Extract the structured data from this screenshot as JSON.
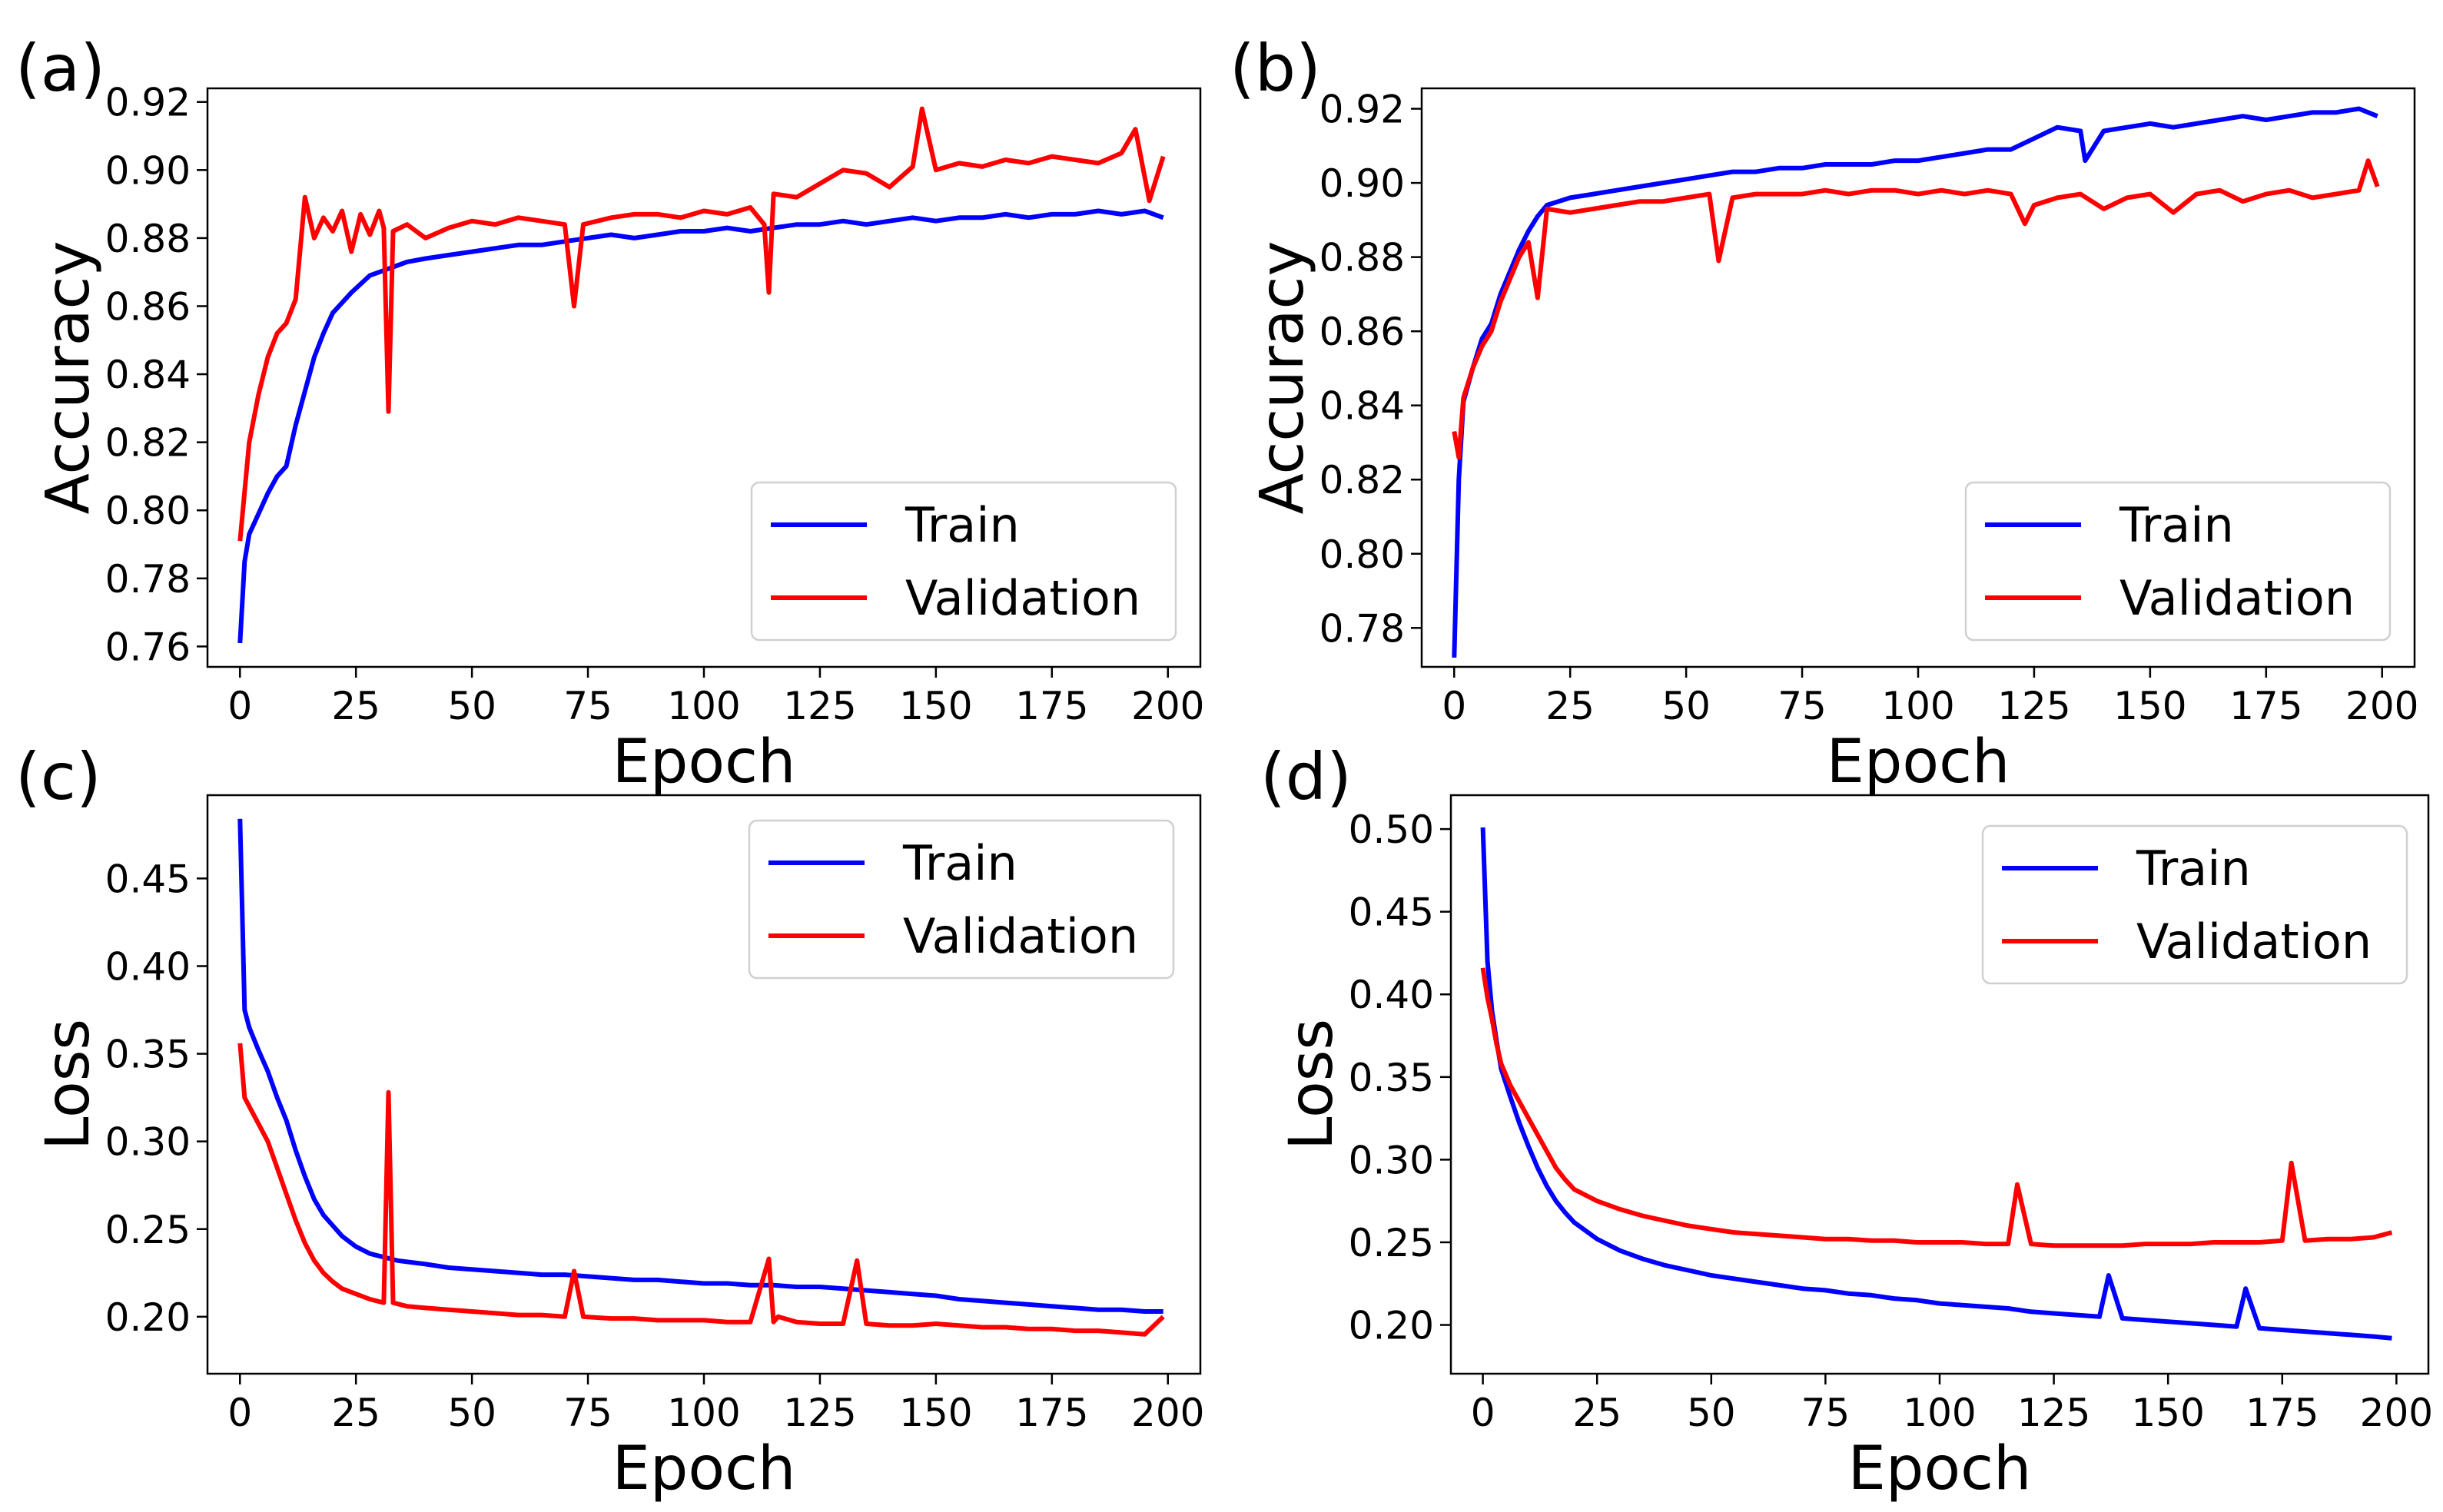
{
  "figure": {
    "panels": [
      "(a)",
      "(b)",
      "(c)",
      "(d)"
    ]
  },
  "colors": {
    "train": "#0000ff",
    "validation": "#ff0000"
  },
  "chart_data": [
    {
      "panel": "(a)",
      "type": "line",
      "title": "",
      "xlabel": "Epoch",
      "ylabel": "Accuracy",
      "xlim": [
        -7,
        207
      ],
      "ylim": [
        0.754,
        0.924
      ],
      "xticks": [
        0,
        25,
        50,
        75,
        100,
        125,
        150,
        175,
        200
      ],
      "yticks": [
        0.76,
        0.78,
        0.8,
        0.82,
        0.84,
        0.86,
        0.88,
        0.9,
        0.92
      ],
      "ytick_labels": [
        "0.76",
        "0.78",
        "0.80",
        "0.82",
        "0.84",
        "0.86",
        "0.88",
        "0.90",
        "0.92"
      ],
      "grid": false,
      "legend": "lower-right",
      "series": [
        {
          "name": "Train",
          "color": "#0000ff",
          "x": [
            0,
            1,
            2,
            4,
            6,
            8,
            10,
            12,
            14,
            16,
            18,
            20,
            24,
            28,
            32,
            36,
            40,
            45,
            50,
            55,
            60,
            65,
            70,
            75,
            80,
            85,
            90,
            95,
            100,
            105,
            110,
            115,
            120,
            125,
            130,
            135,
            140,
            145,
            150,
            155,
            160,
            165,
            170,
            175,
            180,
            185,
            190,
            195,
            199
          ],
          "y": [
            0.761,
            0.785,
            0.793,
            0.799,
            0.805,
            0.81,
            0.813,
            0.825,
            0.835,
            0.845,
            0.852,
            0.858,
            0.864,
            0.869,
            0.871,
            0.873,
            0.874,
            0.875,
            0.876,
            0.877,
            0.878,
            0.878,
            0.879,
            0.88,
            0.881,
            0.88,
            0.881,
            0.882,
            0.882,
            0.883,
            0.882,
            0.883,
            0.884,
            0.884,
            0.885,
            0.884,
            0.885,
            0.886,
            0.885,
            0.886,
            0.886,
            0.887,
            0.886,
            0.887,
            0.887,
            0.888,
            0.887,
            0.888,
            0.886
          ]
        },
        {
          "name": "Validation",
          "color": "#ff0000",
          "x": [
            0,
            2,
            4,
            6,
            8,
            10,
            12,
            14,
            16,
            18,
            20,
            22,
            24,
            26,
            28,
            30,
            31,
            32,
            33,
            36,
            40,
            45,
            50,
            55,
            60,
            65,
            70,
            72,
            74,
            80,
            85,
            90,
            95,
            100,
            105,
            110,
            113,
            114,
            115,
            120,
            125,
            130,
            135,
            140,
            145,
            147,
            150,
            155,
            160,
            165,
            170,
            175,
            180,
            185,
            190,
            193,
            196,
            199
          ],
          "y": [
            0.791,
            0.82,
            0.834,
            0.845,
            0.852,
            0.855,
            0.862,
            0.892,
            0.88,
            0.886,
            0.882,
            0.888,
            0.876,
            0.887,
            0.881,
            0.888,
            0.883,
            0.829,
            0.882,
            0.884,
            0.88,
            0.883,
            0.885,
            0.884,
            0.886,
            0.885,
            0.884,
            0.86,
            0.884,
            0.886,
            0.887,
            0.887,
            0.886,
            0.888,
            0.887,
            0.889,
            0.884,
            0.864,
            0.893,
            0.892,
            0.896,
            0.9,
            0.899,
            0.895,
            0.901,
            0.918,
            0.9,
            0.902,
            0.901,
            0.903,
            0.902,
            0.904,
            0.903,
            0.902,
            0.905,
            0.912,
            0.891,
            0.904
          ]
        }
      ]
    },
    {
      "panel": "(b)",
      "type": "line",
      "title": "",
      "xlabel": "Epoch",
      "ylabel": "Accuracy",
      "xlim": [
        -7,
        207
      ],
      "ylim": [
        0.7695,
        0.9255
      ],
      "xticks": [
        0,
        25,
        50,
        75,
        100,
        125,
        150,
        175,
        200
      ],
      "yticks": [
        0.78,
        0.8,
        0.82,
        0.84,
        0.86,
        0.88,
        0.9,
        0.92
      ],
      "ytick_labels": [
        "0.78",
        "0.80",
        "0.82",
        "0.84",
        "0.86",
        "0.88",
        "0.90",
        "0.92"
      ],
      "grid": false,
      "legend": "lower-right",
      "series": [
        {
          "name": "Train",
          "color": "#0000ff",
          "x": [
            0,
            1,
            2,
            4,
            6,
            8,
            10,
            12,
            14,
            16,
            18,
            20,
            25,
            30,
            35,
            40,
            45,
            50,
            55,
            60,
            65,
            70,
            75,
            80,
            85,
            90,
            95,
            100,
            105,
            110,
            115,
            120,
            125,
            130,
            135,
            136,
            140,
            145,
            150,
            155,
            160,
            165,
            170,
            175,
            180,
            185,
            190,
            195,
            199
          ],
          "y": [
            0.772,
            0.82,
            0.841,
            0.85,
            0.858,
            0.862,
            0.87,
            0.876,
            0.882,
            0.887,
            0.891,
            0.894,
            0.896,
            0.897,
            0.898,
            0.899,
            0.9,
            0.901,
            0.902,
            0.903,
            0.903,
            0.904,
            0.904,
            0.905,
            0.905,
            0.905,
            0.906,
            0.906,
            0.907,
            0.908,
            0.909,
            0.909,
            0.912,
            0.915,
            0.914,
            0.906,
            0.914,
            0.915,
            0.916,
            0.915,
            0.916,
            0.917,
            0.918,
            0.917,
            0.918,
            0.919,
            0.919,
            0.92,
            0.918
          ]
        },
        {
          "name": "Validation",
          "color": "#ff0000",
          "x": [
            0,
            1,
            2,
            4,
            6,
            8,
            10,
            12,
            14,
            16,
            18,
            20,
            25,
            30,
            35,
            40,
            45,
            50,
            55,
            57,
            60,
            65,
            70,
            75,
            80,
            85,
            90,
            95,
            100,
            105,
            110,
            115,
            120,
            123,
            125,
            130,
            135,
            140,
            145,
            150,
            155,
            160,
            165,
            170,
            175,
            180,
            185,
            190,
            195,
            197,
            199
          ],
          "y": [
            0.833,
            0.826,
            0.842,
            0.85,
            0.856,
            0.86,
            0.868,
            0.874,
            0.88,
            0.884,
            0.869,
            0.893,
            0.892,
            0.893,
            0.894,
            0.895,
            0.895,
            0.896,
            0.897,
            0.879,
            0.896,
            0.897,
            0.897,
            0.897,
            0.898,
            0.897,
            0.898,
            0.898,
            0.897,
            0.898,
            0.897,
            0.898,
            0.897,
            0.889,
            0.894,
            0.896,
            0.897,
            0.893,
            0.896,
            0.897,
            0.892,
            0.897,
            0.898,
            0.895,
            0.897,
            0.898,
            0.896,
            0.897,
            0.898,
            0.906,
            0.899
          ]
        }
      ]
    },
    {
      "panel": "(c)",
      "type": "line",
      "title": "",
      "xlabel": "Epoch",
      "ylabel": "Loss",
      "xlim": [
        -7,
        207
      ],
      "ylim": [
        0.1675,
        0.4975
      ],
      "xticks": [
        0,
        25,
        50,
        75,
        100,
        125,
        150,
        175,
        200
      ],
      "yticks": [
        0.2,
        0.25,
        0.3,
        0.35,
        0.4,
        0.45
      ],
      "ytick_labels": [
        "0.20",
        "0.25",
        "0.30",
        "0.35",
        "0.40",
        "0.45"
      ],
      "grid": false,
      "legend": "upper-right",
      "series": [
        {
          "name": "Train",
          "color": "#0000ff",
          "x": [
            0,
            1,
            2,
            4,
            6,
            8,
            10,
            12,
            14,
            16,
            18,
            20,
            22,
            25,
            28,
            31,
            34,
            40,
            45,
            50,
            55,
            60,
            65,
            70,
            75,
            80,
            85,
            90,
            95,
            100,
            105,
            110,
            115,
            120,
            125,
            130,
            135,
            140,
            145,
            150,
            155,
            160,
            165,
            170,
            175,
            180,
            185,
            190,
            195,
            199
          ],
          "y": [
            0.484,
            0.375,
            0.365,
            0.352,
            0.34,
            0.325,
            0.312,
            0.295,
            0.28,
            0.267,
            0.258,
            0.252,
            0.246,
            0.24,
            0.236,
            0.234,
            0.232,
            0.23,
            0.228,
            0.227,
            0.226,
            0.225,
            0.224,
            0.224,
            0.223,
            0.222,
            0.221,
            0.221,
            0.22,
            0.219,
            0.219,
            0.218,
            0.218,
            0.217,
            0.217,
            0.216,
            0.215,
            0.214,
            0.213,
            0.212,
            0.21,
            0.209,
            0.208,
            0.207,
            0.206,
            0.205,
            0.204,
            0.204,
            0.203,
            0.203
          ]
        },
        {
          "name": "Validation",
          "color": "#ff0000",
          "x": [
            0,
            1,
            2,
            4,
            6,
            8,
            10,
            12,
            14,
            16,
            18,
            20,
            22,
            25,
            28,
            31,
            32,
            33,
            36,
            40,
            45,
            50,
            55,
            60,
            65,
            70,
            72,
            74,
            80,
            85,
            90,
            95,
            100,
            105,
            110,
            114,
            115,
            116,
            120,
            125,
            130,
            133,
            135,
            140,
            145,
            150,
            155,
            160,
            165,
            170,
            175,
            180,
            185,
            190,
            195,
            199
          ],
          "y": [
            0.356,
            0.325,
            0.32,
            0.31,
            0.3,
            0.285,
            0.27,
            0.255,
            0.242,
            0.232,
            0.225,
            0.22,
            0.216,
            0.213,
            0.21,
            0.208,
            0.328,
            0.208,
            0.206,
            0.205,
            0.204,
            0.203,
            0.202,
            0.201,
            0.201,
            0.2,
            0.226,
            0.2,
            0.199,
            0.199,
            0.198,
            0.198,
            0.198,
            0.197,
            0.197,
            0.233,
            0.197,
            0.2,
            0.197,
            0.196,
            0.196,
            0.232,
            0.196,
            0.195,
            0.195,
            0.196,
            0.195,
            0.194,
            0.194,
            0.193,
            0.193,
            0.192,
            0.192,
            0.191,
            0.19,
            0.2
          ]
        }
      ]
    },
    {
      "panel": "(d)",
      "type": "line",
      "title": "",
      "xlabel": "Epoch",
      "ylabel": "Loss",
      "xlim": [
        -7,
        207
      ],
      "ylim": [
        0.1705,
        0.5205
      ],
      "xticks": [
        0,
        25,
        50,
        75,
        100,
        125,
        150,
        175,
        200
      ],
      "yticks": [
        0.2,
        0.25,
        0.3,
        0.35,
        0.4,
        0.45,
        0.5
      ],
      "ytick_labels": [
        "0.20",
        "0.25",
        "0.30",
        "0.35",
        "0.40",
        "0.45",
        "0.50"
      ],
      "grid": false,
      "legend": "upper-right",
      "series": [
        {
          "name": "Train",
          "color": "#0000ff",
          "x": [
            0,
            1,
            2,
            3,
            4,
            6,
            8,
            10,
            12,
            14,
            16,
            18,
            20,
            25,
            30,
            35,
            40,
            45,
            50,
            55,
            60,
            65,
            70,
            75,
            80,
            85,
            90,
            95,
            100,
            105,
            110,
            115,
            120,
            125,
            130,
            135,
            137,
            140,
            145,
            150,
            155,
            160,
            165,
            167,
            170,
            175,
            180,
            185,
            190,
            195,
            199
          ],
          "y": [
            0.501,
            0.42,
            0.39,
            0.372,
            0.355,
            0.338,
            0.322,
            0.308,
            0.295,
            0.284,
            0.275,
            0.268,
            0.262,
            0.252,
            0.245,
            0.24,
            0.236,
            0.233,
            0.23,
            0.228,
            0.226,
            0.224,
            0.222,
            0.221,
            0.219,
            0.218,
            0.216,
            0.215,
            0.213,
            0.212,
            0.211,
            0.21,
            0.208,
            0.207,
            0.206,
            0.205,
            0.23,
            0.204,
            0.203,
            0.202,
            0.201,
            0.2,
            0.199,
            0.222,
            0.198,
            0.197,
            0.196,
            0.195,
            0.194,
            0.193,
            0.192
          ]
        },
        {
          "name": "Validation",
          "color": "#ff0000",
          "x": [
            0,
            1,
            2,
            3,
            4,
            6,
            8,
            10,
            12,
            14,
            16,
            18,
            20,
            25,
            30,
            35,
            40,
            45,
            50,
            55,
            60,
            65,
            70,
            75,
            80,
            85,
            90,
            95,
            100,
            105,
            110,
            115,
            117,
            120,
            125,
            130,
            135,
            140,
            145,
            150,
            155,
            160,
            165,
            170,
            175,
            177,
            180,
            185,
            190,
            195,
            199
          ],
          "y": [
            0.416,
            0.398,
            0.385,
            0.37,
            0.358,
            0.345,
            0.335,
            0.325,
            0.315,
            0.305,
            0.295,
            0.288,
            0.282,
            0.275,
            0.27,
            0.266,
            0.263,
            0.26,
            0.258,
            0.256,
            0.255,
            0.254,
            0.253,
            0.252,
            0.252,
            0.251,
            0.251,
            0.25,
            0.25,
            0.25,
            0.249,
            0.249,
            0.285,
            0.249,
            0.248,
            0.248,
            0.248,
            0.248,
            0.249,
            0.249,
            0.249,
            0.25,
            0.25,
            0.25,
            0.251,
            0.298,
            0.251,
            0.252,
            0.252,
            0.253,
            0.256
          ]
        }
      ]
    }
  ]
}
